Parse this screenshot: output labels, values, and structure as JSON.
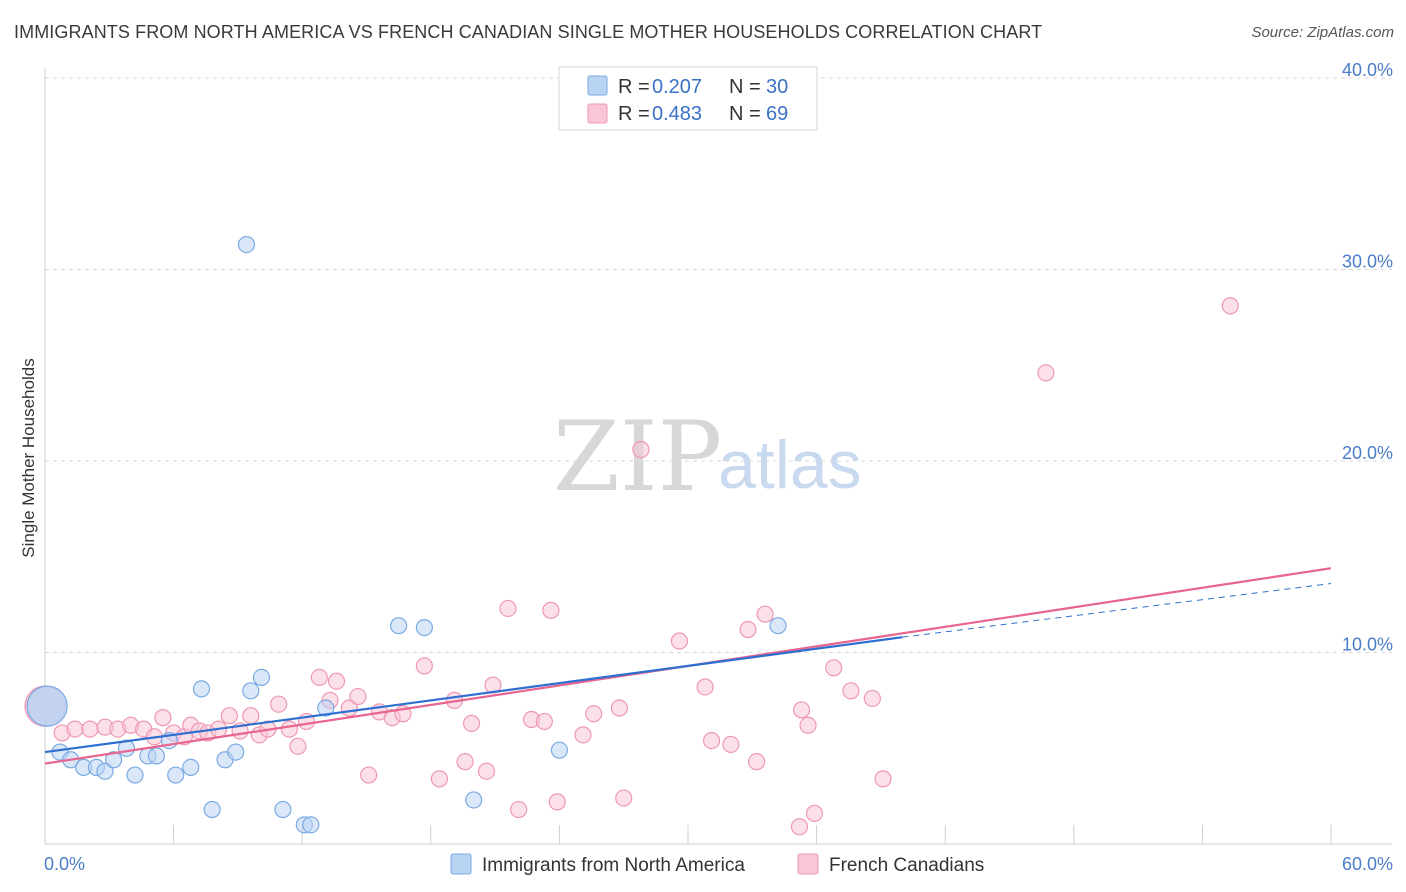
{
  "title": "IMMIGRANTS FROM NORTH AMERICA VS FRENCH CANADIAN SINGLE MOTHER HOUSEHOLDS CORRELATION CHART",
  "source": "Source: ZipAtlas.com",
  "watermark": {
    "zip": "ZIP",
    "atlas": "atlas"
  },
  "colors": {
    "blue_fill": "#b9d3f2",
    "blue_stroke": "#7aaae3",
    "blue_line": "#2f6fd0",
    "pink_fill": "#f9c6d5",
    "pink_stroke": "#ee98b3",
    "pink_line": "#e8658f",
    "grid": "#d9d9d9",
    "tick_text": "#4a7cc9"
  },
  "legend": {
    "r_label": "R =",
    "n_label": "N =",
    "series": [
      {
        "r": "0.207",
        "n": "30"
      },
      {
        "r": "0.483",
        "n": "69"
      }
    ]
  },
  "chart_data": {
    "type": "scatter",
    "title": "IMMIGRANTS FROM NORTH AMERICA VS FRENCH CANADIAN SINGLE MOTHER HOUSEHOLDS CORRELATION CHART",
    "xlabel": "",
    "ylabel": "Single Mother Households",
    "xlim": [
      0,
      60
    ],
    "ylim": [
      0,
      40
    ],
    "x_tick_labels": [
      "0.0%",
      "60.0%"
    ],
    "y_ticks": [
      10,
      20,
      30,
      40
    ],
    "y_tick_labels": [
      "10.0%",
      "20.0%",
      "30.0%",
      "40.0%"
    ],
    "grid": true,
    "legend_position": "top-center",
    "series": [
      {
        "name": "Immigrants from North America",
        "r": 0.207,
        "n": 30,
        "trend": {
          "x0": 0,
          "y0": 4.8,
          "x1": 40,
          "y1": 10.8,
          "dashed_to_x": 60,
          "dashed_to_y": 13.6
        },
        "points": [
          [
            0.7,
            4.8
          ],
          [
            1.2,
            4.4
          ],
          [
            1.8,
            4.0
          ],
          [
            2.4,
            4.0
          ],
          [
            2.8,
            3.8
          ],
          [
            3.2,
            4.4
          ],
          [
            3.8,
            5.0
          ],
          [
            4.2,
            3.6
          ],
          [
            4.8,
            4.6
          ],
          [
            5.2,
            4.6
          ],
          [
            5.8,
            5.4
          ],
          [
            6.1,
            3.6
          ],
          [
            6.8,
            4.0
          ],
          [
            7.3,
            8.1
          ],
          [
            7.8,
            1.8
          ],
          [
            8.4,
            4.4
          ],
          [
            8.9,
            4.8
          ],
          [
            9.6,
            8.0
          ],
          [
            10.1,
            8.7
          ],
          [
            9.4,
            31.3
          ],
          [
            11.1,
            1.8
          ],
          [
            12.1,
            1.0
          ],
          [
            12.4,
            1.0
          ],
          [
            13.1,
            7.1
          ],
          [
            16.5,
            11.4
          ],
          [
            17.7,
            11.3
          ],
          [
            20.0,
            2.3
          ],
          [
            24.0,
            4.9
          ],
          [
            34.2,
            11.4
          ],
          [
            0.1,
            7.2
          ]
        ]
      },
      {
        "name": "French Canadians",
        "r": 0.483,
        "n": 69,
        "trend": {
          "x0": 0,
          "y0": 4.2,
          "x1": 60,
          "y1": 14.4
        },
        "points": [
          [
            0.0,
            7.2
          ],
          [
            0.8,
            5.8
          ],
          [
            1.4,
            6.0
          ],
          [
            2.1,
            6.0
          ],
          [
            2.8,
            6.1
          ],
          [
            3.4,
            6.0
          ],
          [
            4.0,
            6.2
          ],
          [
            4.6,
            6.0
          ],
          [
            5.1,
            5.6
          ],
          [
            5.5,
            6.6
          ],
          [
            6.0,
            5.8
          ],
          [
            6.5,
            5.6
          ],
          [
            6.8,
            6.2
          ],
          [
            7.2,
            5.9
          ],
          [
            7.6,
            5.8
          ],
          [
            8.1,
            6.0
          ],
          [
            8.6,
            6.7
          ],
          [
            9.1,
            5.9
          ],
          [
            9.6,
            6.7
          ],
          [
            10.0,
            5.7
          ],
          [
            10.4,
            6.0
          ],
          [
            10.9,
            7.3
          ],
          [
            11.4,
            6.0
          ],
          [
            11.8,
            5.1
          ],
          [
            12.2,
            6.4
          ],
          [
            12.8,
            8.7
          ],
          [
            13.3,
            7.5
          ],
          [
            13.6,
            8.5
          ],
          [
            14.2,
            7.1
          ],
          [
            14.6,
            7.7
          ],
          [
            15.1,
            3.6
          ],
          [
            15.6,
            6.9
          ],
          [
            16.2,
            6.6
          ],
          [
            16.7,
            6.8
          ],
          [
            17.7,
            9.3
          ],
          [
            18.4,
            3.4
          ],
          [
            19.1,
            7.5
          ],
          [
            19.6,
            4.3
          ],
          [
            19.9,
            6.3
          ],
          [
            20.6,
            3.8
          ],
          [
            20.9,
            8.3
          ],
          [
            21.6,
            12.3
          ],
          [
            22.1,
            1.8
          ],
          [
            22.7,
            6.5
          ],
          [
            23.3,
            6.4
          ],
          [
            23.6,
            12.2
          ],
          [
            23.9,
            2.2
          ],
          [
            25.1,
            5.7
          ],
          [
            25.6,
            6.8
          ],
          [
            26.8,
            7.1
          ],
          [
            27.8,
            20.6
          ],
          [
            27.0,
            2.4
          ],
          [
            29.6,
            10.6
          ],
          [
            30.8,
            8.2
          ],
          [
            31.1,
            5.4
          ],
          [
            32.0,
            5.2
          ],
          [
            32.8,
            11.2
          ],
          [
            33.6,
            12.0
          ],
          [
            33.2,
            4.3
          ],
          [
            35.3,
            7.0
          ],
          [
            35.2,
            0.9
          ],
          [
            35.6,
            6.2
          ],
          [
            35.9,
            1.6
          ],
          [
            36.8,
            9.2
          ],
          [
            37.6,
            8.0
          ],
          [
            38.6,
            7.6
          ],
          [
            39.1,
            3.4
          ],
          [
            46.7,
            24.6
          ],
          [
            55.3,
            28.1
          ]
        ]
      }
    ]
  },
  "bottom_legend": [
    "Immigrants from North America",
    "French Canadians"
  ]
}
